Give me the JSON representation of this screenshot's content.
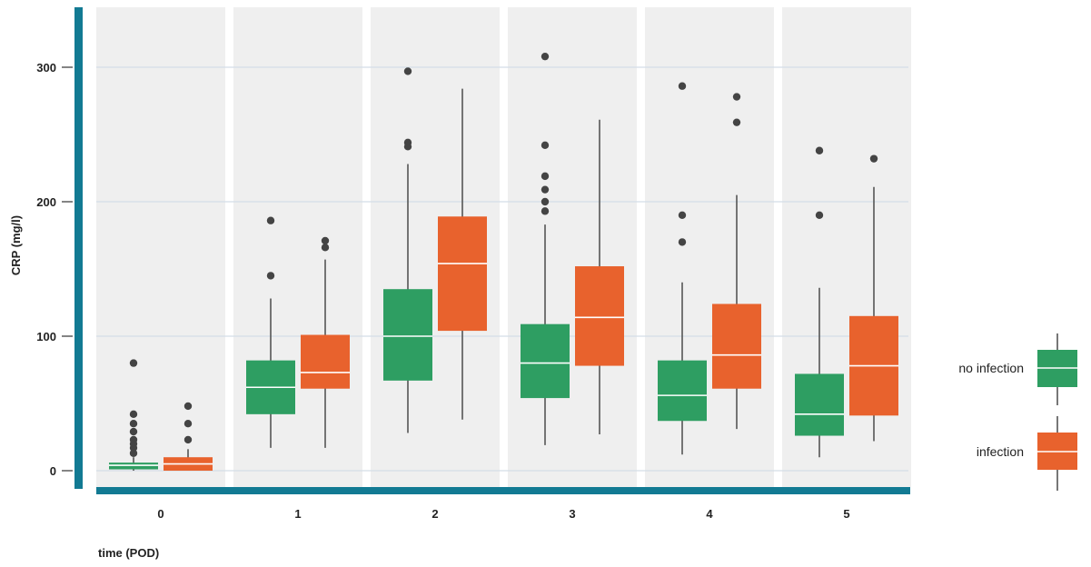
{
  "chart_data": {
    "type": "boxplot",
    "xlabel": "time (POD)",
    "ylabel": "CRP (mg/l)",
    "ylim": [
      -15,
      345
    ],
    "yticks": [
      0,
      100,
      200,
      300
    ],
    "categories": [
      "0",
      "1",
      "2",
      "3",
      "4",
      "5"
    ],
    "grid": true,
    "legend_position": "right",
    "series": [
      {
        "name": "no infection",
        "color": "#2e9e62",
        "boxes": [
          {
            "whisker_low": 0,
            "q1": 1,
            "median": 4,
            "q3": 6,
            "whisker_high": 10,
            "outliers": [
              13,
              17,
              20,
              23,
              29,
              35,
              42,
              80
            ]
          },
          {
            "whisker_low": 17,
            "q1": 42,
            "median": 62,
            "q3": 82,
            "whisker_high": 128,
            "outliers": [
              145,
              186
            ]
          },
          {
            "whisker_low": 28,
            "q1": 67,
            "median": 100,
            "q3": 135,
            "whisker_high": 228,
            "outliers": [
              241,
              244,
              297
            ]
          },
          {
            "whisker_low": 19,
            "q1": 54,
            "median": 80,
            "q3": 109,
            "whisker_high": 183,
            "outliers": [
              193,
              200,
              209,
              219,
              242,
              308
            ]
          },
          {
            "whisker_low": 12,
            "q1": 37,
            "median": 56,
            "q3": 82,
            "whisker_high": 140,
            "outliers": [
              170,
              190,
              286
            ]
          },
          {
            "whisker_low": 10,
            "q1": 26,
            "median": 42,
            "q3": 72,
            "whisker_high": 136,
            "outliers": [
              190,
              238
            ]
          }
        ]
      },
      {
        "name": "infection",
        "color": "#e8622d",
        "boxes": [
          {
            "whisker_low": 0,
            "q1": 0,
            "median": 5,
            "q3": 10,
            "whisker_high": 16,
            "outliers": [
              23,
              35,
              48
            ]
          },
          {
            "whisker_low": 17,
            "q1": 61,
            "median": 73,
            "q3": 101,
            "whisker_high": 157,
            "outliers": [
              166,
              171
            ]
          },
          {
            "whisker_low": 38,
            "q1": 104,
            "median": 154,
            "q3": 189,
            "whisker_high": 284,
            "outliers": []
          },
          {
            "whisker_low": 27,
            "q1": 78,
            "median": 114,
            "q3": 152,
            "whisker_high": 261,
            "outliers": []
          },
          {
            "whisker_low": 31,
            "q1": 61,
            "median": 86,
            "q3": 124,
            "whisker_high": 205,
            "outliers": [
              259,
              278
            ]
          },
          {
            "whisker_low": 22,
            "q1": 41,
            "median": 78,
            "q3": 115,
            "whisker_high": 211,
            "outliers": [
              232
            ]
          }
        ]
      }
    ]
  }
}
